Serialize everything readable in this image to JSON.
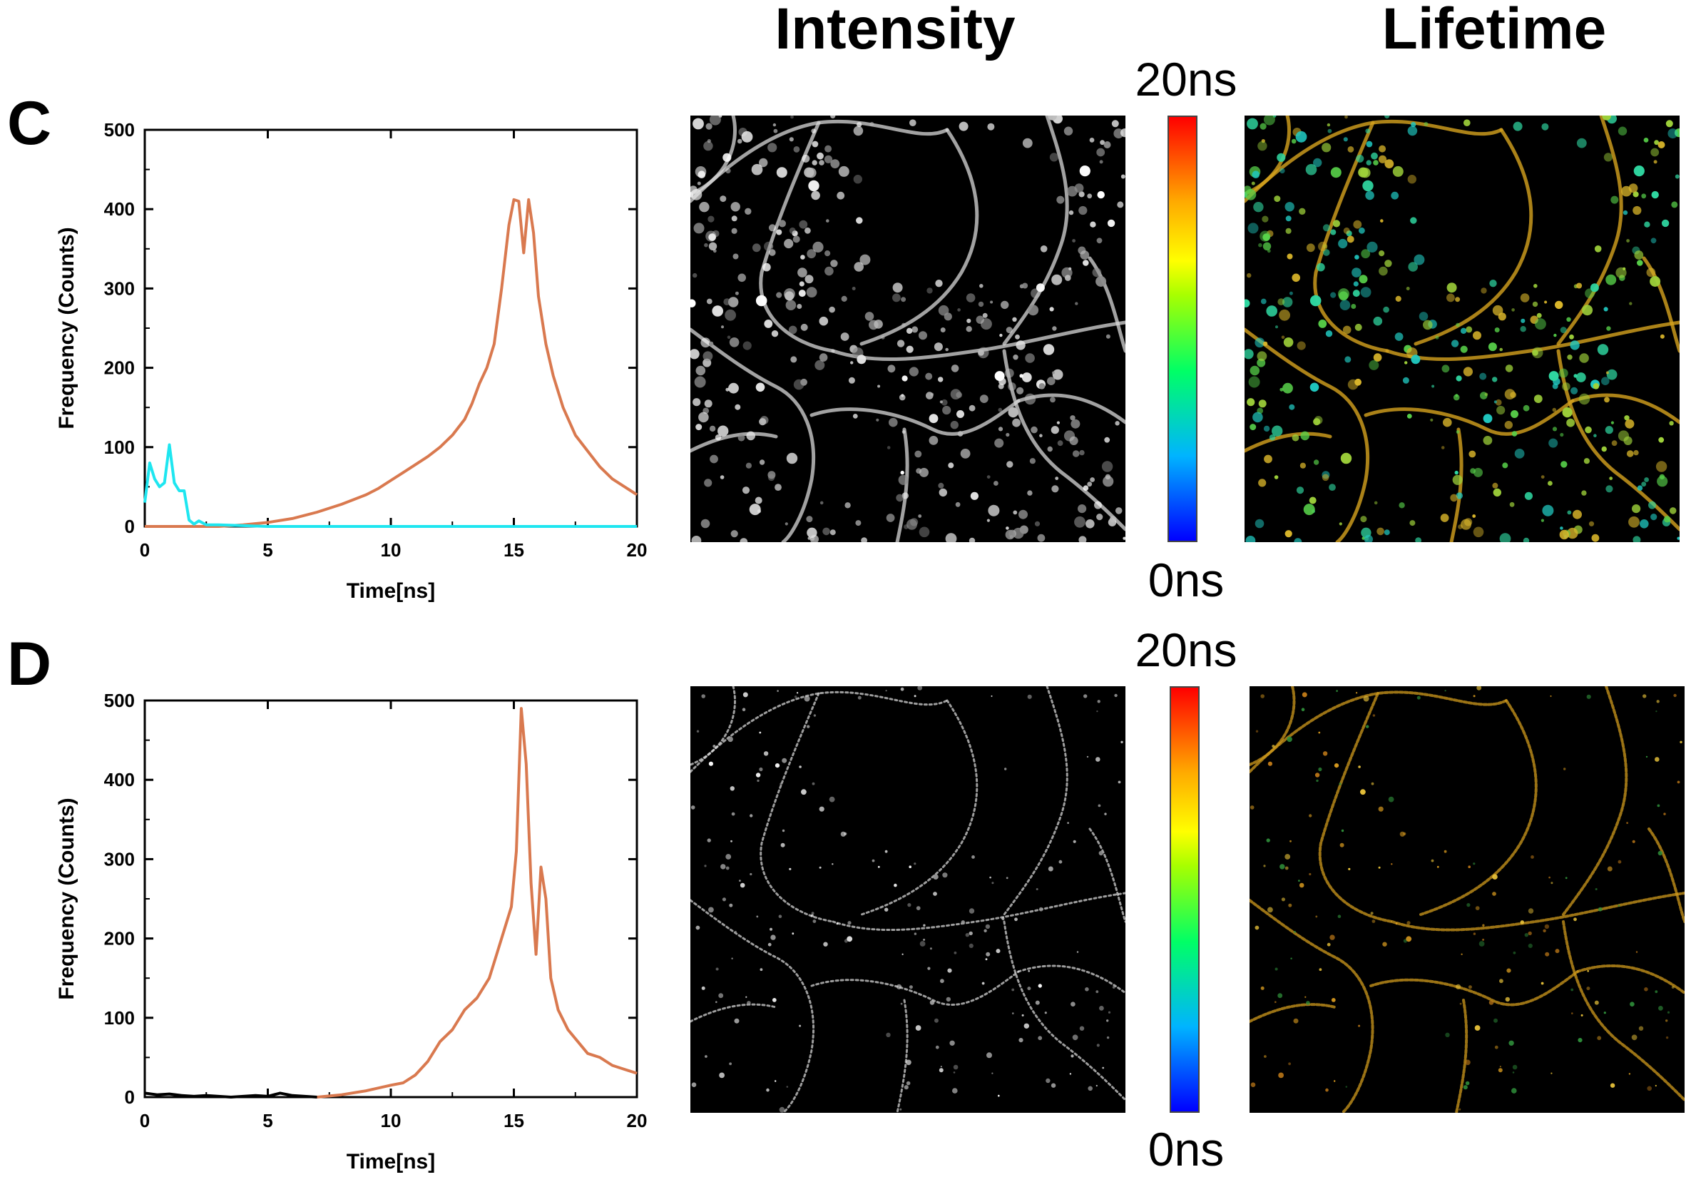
{
  "headers": {
    "intensity": "Intensity",
    "lifetime": "Lifetime"
  },
  "panels": {
    "C": {
      "letter": "C",
      "colorbar_top": "20ns",
      "colorbar_bottom": "0ns"
    },
    "D": {
      "letter": "D",
      "colorbar_top": "20ns",
      "colorbar_bottom": "0ns"
    }
  },
  "colors": {
    "orange": "#d9794f",
    "cyan": "#1ee6f0",
    "black": "#000000"
  },
  "chart_data": [
    {
      "panel": "C",
      "type": "line",
      "xlabel": "Time[ns]",
      "ylabel": "Frequency (Counts)",
      "xlim": [
        0,
        20
      ],
      "ylim": [
        0,
        500
      ],
      "xticks": [
        0,
        5,
        10,
        15,
        20
      ],
      "yticks": [
        0,
        100,
        200,
        300,
        400,
        500
      ],
      "series": [
        {
          "color": "#d9794f",
          "x": [
            0,
            1,
            2,
            3,
            4,
            5,
            6,
            7,
            8,
            9,
            9.5,
            10,
            10.5,
            11,
            11.5,
            12,
            12.5,
            13,
            13.3,
            13.6,
            13.9,
            14.2,
            14.5,
            14.8,
            15,
            15.2,
            15.4,
            15.6,
            15.8,
            16,
            16.3,
            16.6,
            17,
            17.5,
            18,
            18.5,
            19,
            19.5,
            20
          ],
          "y": [
            0,
            0,
            0,
            0,
            2,
            5,
            10,
            18,
            28,
            40,
            48,
            58,
            68,
            78,
            88,
            100,
            115,
            135,
            155,
            180,
            200,
            230,
            300,
            380,
            412,
            410,
            345,
            412,
            370,
            290,
            230,
            190,
            150,
            115,
            95,
            75,
            60,
            50,
            40
          ]
        },
        {
          "color": "#1ee6f0",
          "x": [
            0,
            0.2,
            0.4,
            0.6,
            0.8,
            1,
            1.2,
            1.4,
            1.6,
            1.8,
            2,
            2.2,
            2.5,
            3,
            4,
            5,
            10,
            15,
            20
          ],
          "y": [
            30,
            80,
            60,
            50,
            55,
            103,
            55,
            45,
            45,
            8,
            3,
            7,
            2,
            2,
            1,
            0,
            0,
            0,
            0
          ]
        }
      ]
    },
    {
      "panel": "D",
      "type": "line",
      "xlabel": "Time[ns]",
      "ylabel": "Frequency (Counts)",
      "xlim": [
        0,
        20
      ],
      "ylim": [
        0,
        500
      ],
      "xticks": [
        0,
        5,
        10,
        15,
        20
      ],
      "yticks": [
        0,
        100,
        200,
        300,
        400,
        500
      ],
      "series": [
        {
          "color": "#d9794f",
          "x": [
            7,
            8,
            9,
            10,
            10.5,
            11,
            11.5,
            12,
            12.5,
            13,
            13.5,
            14,
            14.3,
            14.6,
            14.9,
            15.1,
            15.3,
            15.5,
            15.7,
            15.9,
            16.1,
            16.3,
            16.5,
            16.8,
            17.2,
            17.6,
            18,
            18.5,
            19,
            19.5,
            20
          ],
          "y": [
            0,
            3,
            8,
            15,
            18,
            28,
            45,
            70,
            85,
            110,
            125,
            150,
            180,
            210,
            240,
            310,
            490,
            420,
            270,
            180,
            290,
            250,
            150,
            110,
            85,
            70,
            55,
            50,
            40,
            35,
            30
          ]
        },
        {
          "color": "#000000",
          "x": [
            0,
            0.5,
            1,
            1.5,
            2,
            2.5,
            3,
            3.5,
            4,
            4.5,
            5,
            5.5,
            6,
            6.5,
            7
          ],
          "y": [
            5,
            3,
            4,
            2,
            1,
            2,
            1,
            0,
            1,
            2,
            1,
            5,
            2,
            1,
            0
          ]
        }
      ]
    }
  ]
}
